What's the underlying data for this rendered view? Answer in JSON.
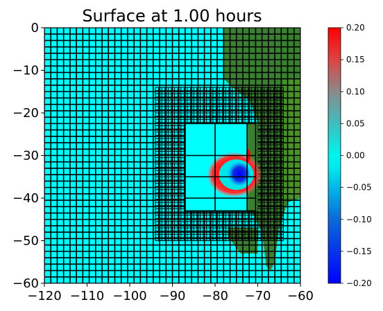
{
  "chart_data": {
    "type": "heatmap",
    "title": "Surface at 1.00 hours",
    "xlabel": "",
    "ylabel": "",
    "xlim": [
      -120,
      -60
    ],
    "ylim": [
      -60,
      0
    ],
    "x_ticks": [
      -120,
      -110,
      -100,
      -90,
      -80,
      -70,
      -60
    ],
    "y_ticks": [
      0,
      -10,
      -20,
      -30,
      -40,
      -50,
      -60
    ],
    "x_tick_labels": [
      "−120",
      "−110",
      "−100",
      "−90",
      "−80",
      "−70",
      "−60"
    ],
    "y_tick_labels": [
      "0",
      "−10",
      "−20",
      "−30",
      "−40",
      "−50",
      "−60"
    ],
    "grid": false,
    "colorbar": {
      "min": -0.2,
      "max": 0.2,
      "ticks": [
        0.2,
        0.15,
        0.1,
        0.05,
        0.0,
        -0.05,
        -0.1,
        -0.15,
        -0.2
      ],
      "tick_labels": [
        "0.20",
        "0.15",
        "0.10",
        "0.05",
        "0.00",
        "−0.05",
        "−0.10",
        "−0.15",
        "−0.20"
      ],
      "placement": "right"
    },
    "colors": {
      "ocean": "#00ffff",
      "land": "#3a7f32",
      "land_bright": "#5a9e22",
      "high": "#ff0000",
      "low": "#0000ff",
      "neutral": "#00e6e6"
    }
  }
}
